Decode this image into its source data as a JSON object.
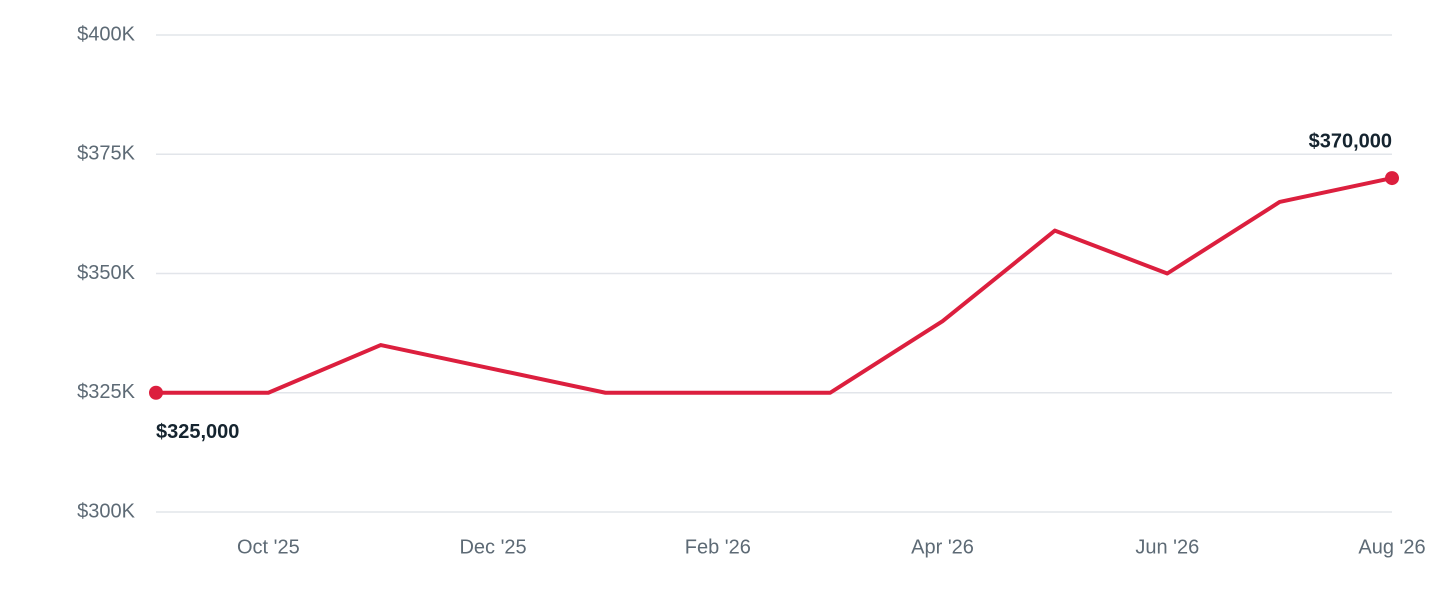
{
  "chart_data": {
    "type": "line",
    "categories": [
      null,
      "Oct '25",
      null,
      "Dec '25",
      null,
      "Feb '26",
      null,
      "Apr '26",
      null,
      "Jun '26",
      null,
      "Aug '26"
    ],
    "series": [
      {
        "color": "#dc1f3e",
        "values": [
          325000,
          325000,
          335000,
          330000,
          325000,
          325000,
          325000,
          340000,
          359000,
          350000,
          365000,
          370000
        ],
        "value_labels": [
          "$325,000",
          null,
          null,
          null,
          null,
          null,
          null,
          null,
          null,
          null,
          null,
          "$370,000"
        ]
      }
    ],
    "ylim": [
      300000,
      400000
    ],
    "yticks": [
      {
        "value": 300000,
        "label": "$300K"
      },
      {
        "value": 325000,
        "label": "$325K"
      },
      {
        "value": 350000,
        "label": "$350K"
      },
      {
        "value": 375000,
        "label": "$375K"
      },
      {
        "value": 400000,
        "label": "$400K"
      }
    ],
    "grid": true
  }
}
